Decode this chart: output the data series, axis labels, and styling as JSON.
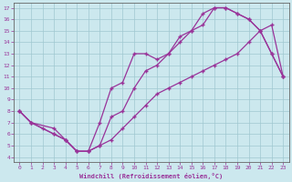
{
  "bg_color": "#cce8ee",
  "line_color": "#993399",
  "xlabel": "Windchill (Refroidissement éolien,°C)",
  "xlim": [
    -0.5,
    23.5
  ],
  "ylim": [
    3.6,
    17.4
  ],
  "xticks": [
    0,
    1,
    2,
    3,
    4,
    5,
    6,
    7,
    8,
    9,
    10,
    11,
    12,
    13,
    14,
    15,
    16,
    17,
    18,
    19,
    20,
    21,
    22,
    23
  ],
  "yticks": [
    4,
    5,
    6,
    7,
    8,
    9,
    10,
    11,
    12,
    13,
    14,
    15,
    16,
    17
  ],
  "curve1_x": [
    0,
    1,
    2,
    3,
    4,
    5,
    6,
    7,
    8,
    9,
    10,
    11,
    12,
    13,
    14,
    15,
    16,
    17,
    18,
    19,
    20,
    21,
    22,
    23
  ],
  "curve1_y": [
    8.0,
    7.0,
    6.5,
    6.0,
    5.5,
    4.5,
    4.5,
    5.0,
    5.5,
    6.5,
    7.5,
    8.5,
    9.5,
    10.0,
    10.5,
    11.0,
    11.5,
    12.0,
    12.5,
    13.0,
    14.0,
    15.0,
    15.5,
    11.0
  ],
  "curve2_x": [
    0,
    1,
    3,
    4,
    5,
    6,
    7,
    8,
    9,
    10,
    11,
    12,
    13,
    14,
    15,
    16,
    17,
    18,
    19,
    20,
    21,
    22,
    23
  ],
  "curve2_y": [
    8.0,
    7.0,
    6.5,
    5.5,
    4.5,
    4.5,
    7.0,
    10.0,
    10.5,
    13.0,
    13.0,
    12.5,
    13.0,
    14.0,
    15.0,
    15.5,
    17.0,
    17.0,
    16.5,
    16.0,
    15.0,
    13.0,
    11.0
  ],
  "curve3_x": [
    0,
    1,
    3,
    4,
    5,
    6,
    7,
    8,
    9,
    10,
    11,
    12,
    13,
    14,
    15,
    16,
    17,
    18,
    19,
    20,
    21,
    22,
    23
  ],
  "curve3_y": [
    8.0,
    7.0,
    6.0,
    5.5,
    4.5,
    4.5,
    5.0,
    7.5,
    8.0,
    10.0,
    11.5,
    12.0,
    13.0,
    14.5,
    15.0,
    16.5,
    17.0,
    17.0,
    16.5,
    16.0,
    15.0,
    13.0,
    11.0
  ]
}
